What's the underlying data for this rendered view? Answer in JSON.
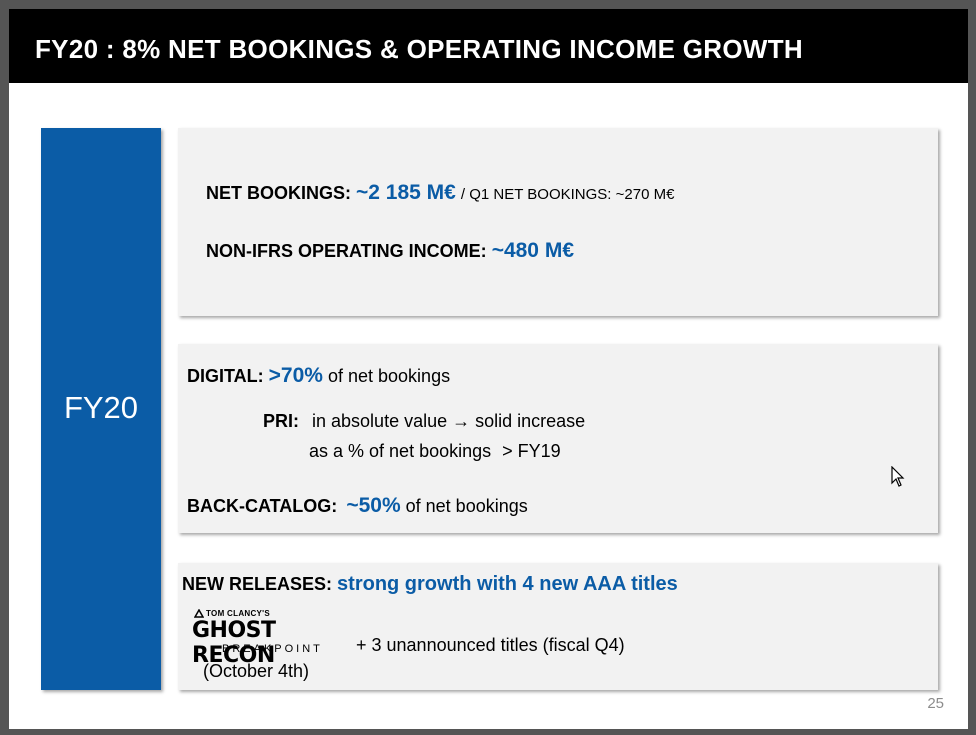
{
  "title": "FY20 : 8% NET BOOKINGS & OPERATING INCOME GROWTH",
  "sidebar": {
    "label": "FY20"
  },
  "box1": {
    "net_bookings_label": "NET BOOKINGS:",
    "net_bookings_value": "~2 185 M€",
    "q1_text": "/ Q1 NET BOOKINGS: ~270 M€",
    "op_income_label": "NON-IFRS OPERATING INCOME:",
    "op_income_value": "~480 M€"
  },
  "box2": {
    "digital_label": "DIGITAL:",
    "digital_value": ">70%",
    "digital_suffix": "of net bookings",
    "pri_label": "PRI:",
    "pri_line1": "in absolute value → solid increase",
    "pri_line2_a": "as a % of net bookings",
    "pri_line2_b": "> FY19",
    "backcatalog_label": "BACK-CATALOG:",
    "backcatalog_value": "~50%",
    "backcatalog_suffix": "of net bookings"
  },
  "box3": {
    "releases_label": "NEW RELEASES:",
    "releases_value": "strong growth with 4 new AAA titles",
    "logo_small": "TOM CLANCY'S",
    "logo_main": "GHOST RECON",
    "logo_sub": "BREAKPOINT",
    "release_date": "(October 4th)",
    "unannounced": "+ 3 unannounced titles (fiscal Q4)"
  },
  "page_number": "25",
  "colors": {
    "accent": "#0b5ca6",
    "title_bg": "#000000",
    "box_bg": "#f2f2f2"
  },
  "icons": {
    "cursor": "mouse-pointer-icon"
  }
}
